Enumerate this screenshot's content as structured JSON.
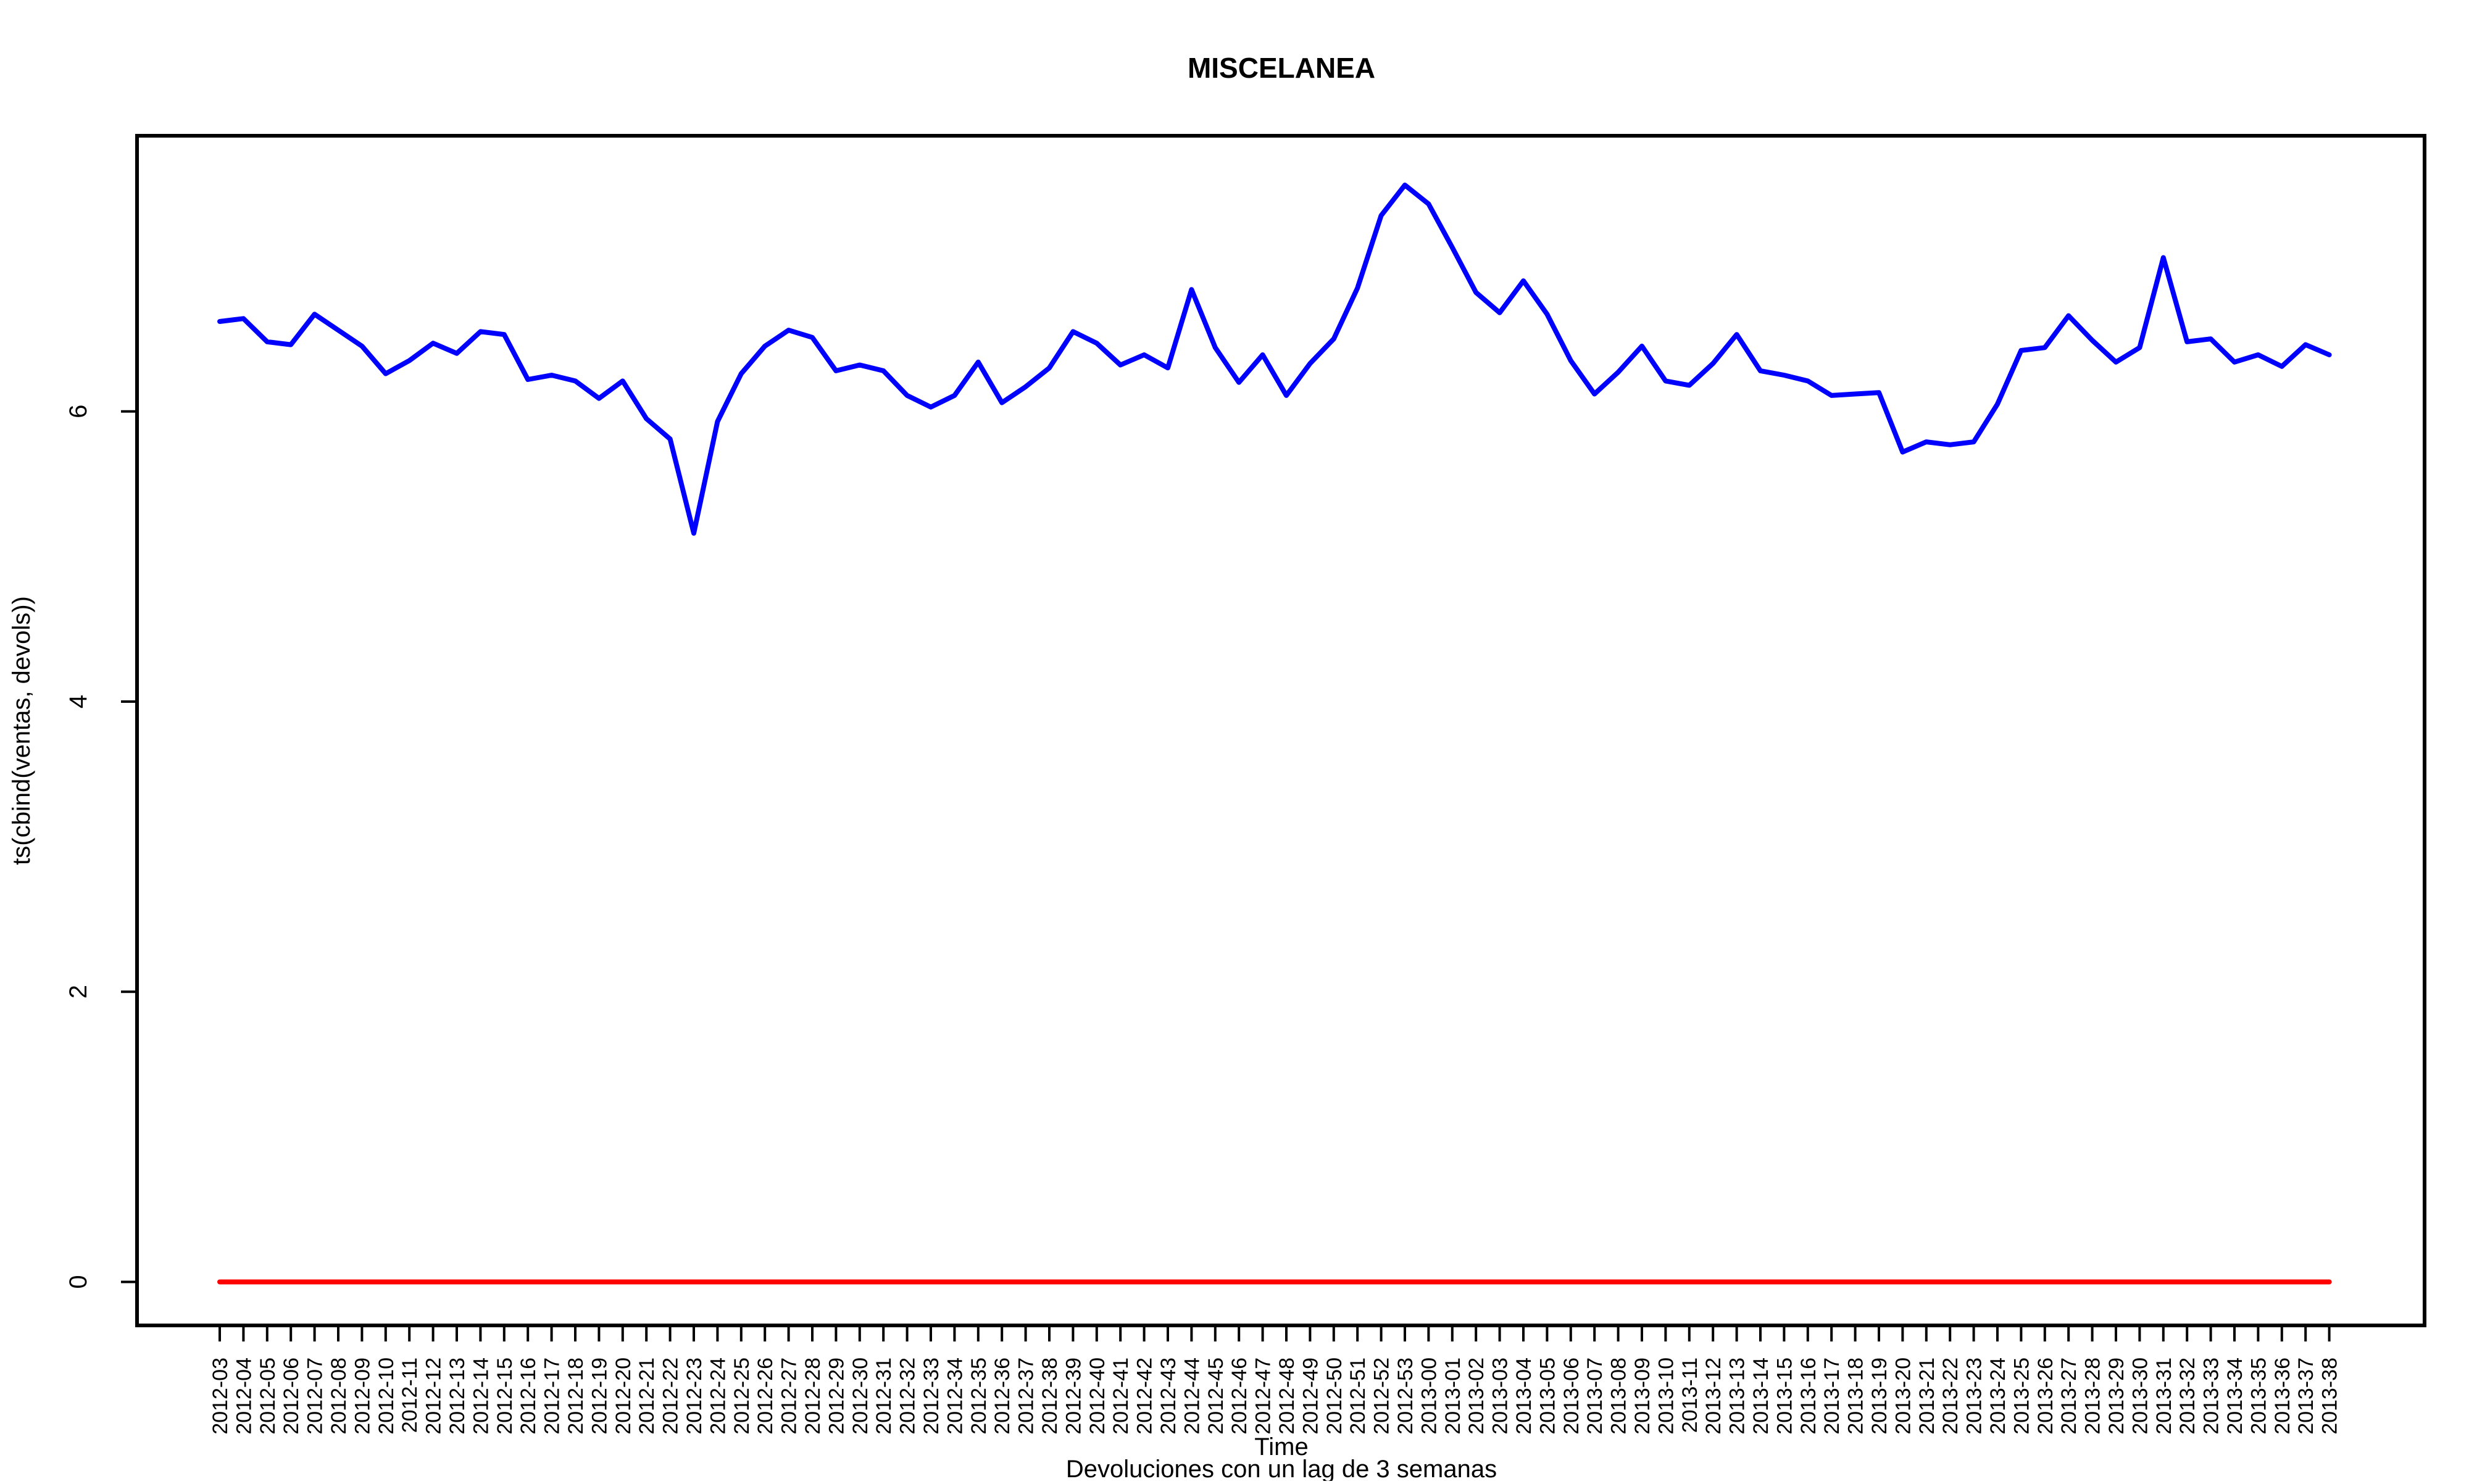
{
  "chart_data": {
    "type": "line",
    "title": "MISCELANEA",
    "xlabel": "Time",
    "subtitle": "Devoluciones con un lag de 3 semanas",
    "ylabel": "ts(cbind(ventas, devols))",
    "ylim": [
      -0.3,
      7.9
    ],
    "yticks": [
      0,
      2,
      4,
      6
    ],
    "grid": false,
    "categories": [
      "2012-03",
      "2012-04",
      "2012-05",
      "2012-06",
      "2012-07",
      "2012-08",
      "2012-09",
      "2012-10",
      "2012-11",
      "2012-12",
      "2012-13",
      "2012-14",
      "2012-15",
      "2012-16",
      "2012-17",
      "2012-18",
      "2012-19",
      "2012-20",
      "2012-21",
      "2012-22",
      "2012-23",
      "2012-24",
      "2012-25",
      "2012-26",
      "2012-27",
      "2012-28",
      "2012-29",
      "2012-30",
      "2012-31",
      "2012-32",
      "2012-33",
      "2012-34",
      "2012-35",
      "2012-36",
      "2012-37",
      "2012-38",
      "2012-39",
      "2012-40",
      "2012-41",
      "2012-42",
      "2012-43",
      "2012-44",
      "2012-45",
      "2012-46",
      "2012-47",
      "2012-48",
      "2012-49",
      "2012-50",
      "2012-51",
      "2012-52",
      "2012-53",
      "2013-00",
      "2013-01",
      "2013-02",
      "2013-03",
      "2013-04",
      "2013-05",
      "2013-06",
      "2013-07",
      "2013-08",
      "2013-09",
      "2013-10",
      "2013-11",
      "2013-12",
      "2013-13",
      "2013-14",
      "2013-15",
      "2013-16",
      "2013-17",
      "2013-18",
      "2013-19",
      "2013-20",
      "2013-21",
      "2013-22",
      "2013-23",
      "2013-24",
      "2013-25",
      "2013-26",
      "2013-27",
      "2013-28",
      "2013-29",
      "2013-30",
      "2013-31",
      "2013-32",
      "2013-33",
      "2013-34",
      "2013-35",
      "2013-36",
      "2013-37",
      "2013-38"
    ],
    "series": [
      {
        "name": "ventas",
        "color": "#0000ff",
        "values": [
          6.62,
          6.64,
          6.48,
          6.46,
          6.67,
          6.56,
          6.45,
          6.26,
          6.35,
          6.47,
          6.4,
          6.55,
          6.53,
          6.22,
          6.25,
          6.21,
          6.09,
          6.21,
          5.95,
          5.81,
          5.16,
          5.93,
          6.26,
          6.45,
          6.56,
          6.51,
          6.28,
          6.32,
          6.28,
          6.11,
          6.03,
          6.11,
          6.34,
          6.06,
          6.17,
          6.3,
          6.55,
          6.47,
          6.32,
          6.39,
          6.3,
          6.84,
          6.44,
          6.2,
          6.39,
          6.11,
          6.33,
          6.5,
          6.85,
          7.35,
          7.56,
          7.43,
          7.13,
          6.82,
          6.68,
          6.9,
          6.67,
          6.35,
          6.12,
          6.27,
          6.45,
          6.21,
          6.18,
          6.33,
          6.53,
          6.28,
          6.25,
          6.21,
          6.11,
          6.12,
          6.13,
          5.72,
          5.79,
          5.77,
          5.79,
          6.05,
          6.42,
          6.44,
          6.66,
          6.49,
          6.34,
          6.44,
          7.06,
          6.48,
          6.5,
          6.34,
          6.39,
          6.31,
          6.46,
          6.39
        ]
      },
      {
        "name": "devols",
        "color": "#ff0000",
        "values": [
          0.0,
          0.0,
          0.0,
          0.0,
          0.0,
          0.0,
          0.0,
          0.0,
          0.0,
          0.0,
          0.0,
          0.0,
          0.0,
          0.0,
          0.0,
          0.0,
          0.0,
          0.0,
          0.0,
          0.0,
          0.0,
          0.0,
          0.0,
          0.0,
          0.0,
          0.0,
          0.0,
          0.0,
          0.0,
          0.0,
          0.0,
          0.0,
          0.0,
          0.0,
          0.0,
          0.0,
          0.0,
          0.0,
          0.0,
          0.0,
          0.0,
          0.0,
          0.0,
          0.0,
          0.0,
          0.0,
          0.0,
          0.0,
          0.0,
          0.0,
          0.0,
          0.0,
          0.0,
          0.0,
          0.0,
          0.0,
          0.0,
          0.0,
          0.0,
          0.0,
          0.0,
          0.0,
          0.0,
          0.0,
          0.0,
          0.0,
          0.0,
          0.0,
          0.0,
          0.0,
          0.0,
          0.0,
          0.0,
          0.0,
          0.0,
          0.0,
          0.0,
          0.0,
          0.0,
          0.0,
          0.0,
          0.0,
          0.0,
          0.0,
          0.0,
          0.0,
          0.0,
          0.0,
          0.0,
          0.0
        ]
      }
    ]
  }
}
